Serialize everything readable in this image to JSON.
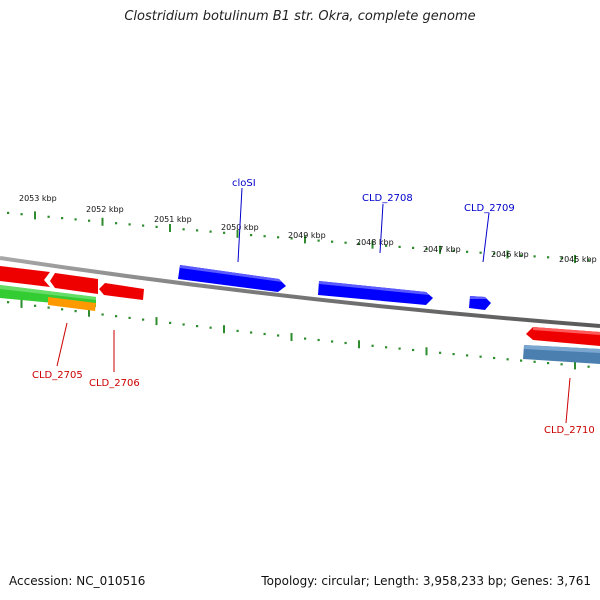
{
  "title": "Clostridium botulinum B1 str. Okra, complete genome",
  "footer": {
    "accession": "Accession: NC_010516",
    "summary": "Topology: circular; Length: 3,958,233 bp; Genes: 3,761"
  },
  "colors": {
    "forward_gene": "#0000ff",
    "reverse_gene": "#ff0000",
    "reverse_track_green": "#33cc33",
    "reverse_track_orange": "#ff9900",
    "reverse_track_blue": "#4a7fb0",
    "ticks": "#2e8b2e",
    "backbone": "#808080"
  },
  "map": {
    "tick_labels": [
      "2053 kbp",
      "2052 kbp",
      "2051 kbp",
      "2050 kbp",
      "2049 kbp",
      "2048 kbp",
      "2047 kbp",
      "2046 kbp",
      "2045 kbp"
    ],
    "genes": [
      {
        "id": "cloSI",
        "strand": "forward",
        "color": "#0000ff"
      },
      {
        "id": "CLD_2708",
        "strand": "forward",
        "color": "#0000ff"
      },
      {
        "id": "CLD_2709",
        "strand": "forward",
        "color": "#0000ff"
      },
      {
        "id": "CLD_2705",
        "strand": "reverse",
        "color": "#cc0000"
      },
      {
        "id": "CLD_2706",
        "strand": "reverse",
        "color": "#cc0000"
      },
      {
        "id": "CLD_2710",
        "strand": "reverse",
        "color": "#cc0000"
      }
    ]
  }
}
